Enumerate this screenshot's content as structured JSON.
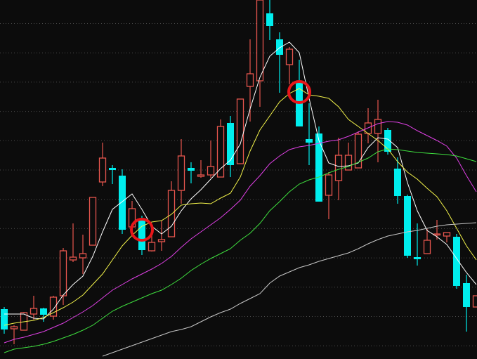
{
  "chart_data": {
    "type": "candlestick",
    "title": "",
    "xlabel": "",
    "ylabel": "",
    "ylim": [
      0,
      52
    ],
    "grid": true,
    "legend": "none",
    "colors": {
      "background": "#0c0c0c",
      "grid": "#4a4a4a",
      "up": "#e8564e",
      "down": "#00eeee",
      "annotation": "#e8161a"
    },
    "candles": [
      {
        "o": 8.0,
        "c": 5.1,
        "h": 8.3,
        "l": 4.5
      },
      {
        "o": 5.2,
        "c": 5.5,
        "h": 5.7,
        "l": 3.0
      },
      {
        "o": 5.0,
        "c": 7.5,
        "h": 7.6,
        "l": 5.0
      },
      {
        "o": 7.3,
        "c": 8.1,
        "h": 9.9,
        "l": 6.5
      },
      {
        "o": 8.1,
        "c": 7.2,
        "h": 8.2,
        "l": 6.2
      },
      {
        "o": 7.0,
        "c": 9.7,
        "h": 9.9,
        "l": 6.5
      },
      {
        "o": 9.9,
        "c": 16.3,
        "h": 16.7,
        "l": 8.6
      },
      {
        "o": 15.0,
        "c": 15.4,
        "h": 20.2,
        "l": 14.7
      },
      {
        "o": 15.3,
        "c": 15.9,
        "h": 18.6,
        "l": 13.0
      },
      {
        "o": 17.1,
        "c": 23.9,
        "h": 23.9,
        "l": 17.1
      },
      {
        "o": 26.1,
        "c": 29.5,
        "h": 31.7,
        "l": 25.5
      },
      {
        "o": 28.1,
        "c": 28.0,
        "h": 28.5,
        "l": 25.8
      },
      {
        "o": 27.0,
        "c": 19.3,
        "h": 27.9,
        "l": 18.7
      },
      {
        "o": 19.7,
        "c": 22.3,
        "h": 23.4,
        "l": 19.7
      },
      {
        "o": 20.6,
        "c": 16.4,
        "h": 21.3,
        "l": 15.7
      },
      {
        "o": 16.3,
        "c": 17.5,
        "h": 19.5,
        "l": 16.2
      },
      {
        "o": 17.6,
        "c": 17.9,
        "h": 20.6,
        "l": 16.3
      },
      {
        "o": 18.3,
        "c": 24.9,
        "h": 26.2,
        "l": 18.3
      },
      {
        "o": 24.9,
        "c": 29.8,
        "h": 32.2,
        "l": 23.0
      },
      {
        "o": 28.1,
        "c": 27.7,
        "h": 28.9,
        "l": 25.9
      },
      {
        "o": 26.9,
        "c": 27.1,
        "h": 29.2,
        "l": 26.7
      },
      {
        "o": 27.1,
        "c": 28.3,
        "h": 32.0,
        "l": 26.7
      },
      {
        "o": 26.8,
        "c": 34.0,
        "h": 35.0,
        "l": 26.8
      },
      {
        "o": 34.5,
        "c": 28.5,
        "h": 35.5,
        "l": 26.8
      },
      {
        "o": 28.7,
        "c": 37.9,
        "h": 37.9,
        "l": 28.7
      },
      {
        "o": 39.7,
        "c": 41.5,
        "h": 46.4,
        "l": 34.7
      },
      {
        "o": 40.5,
        "c": 52.0,
        "h": 52.0,
        "l": 36.8
      },
      {
        "o": 50.1,
        "c": 48.3,
        "h": 52.0,
        "l": 46.3
      },
      {
        "o": 46.4,
        "c": 44.2,
        "h": 47.4,
        "l": 38.8
      },
      {
        "o": 42.8,
        "c": 45.0,
        "h": 45.3,
        "l": 40.0
      },
      {
        "o": 40.3,
        "c": 34.0,
        "h": 43.5,
        "l": 34.0
      },
      {
        "o": 32.2,
        "c": 31.7,
        "h": 37.3,
        "l": 28.5
      },
      {
        "o": 33.0,
        "c": 23.3,
        "h": 34.0,
        "l": 23.3
      },
      {
        "o": 24.2,
        "c": 27.1,
        "h": 27.5,
        "l": 20.8
      },
      {
        "o": 26.3,
        "c": 29.9,
        "h": 32.4,
        "l": 23.5
      },
      {
        "o": 27.8,
        "c": 29.9,
        "h": 31.7,
        "l": 27.8
      },
      {
        "o": 28.1,
        "c": 32.9,
        "h": 33.3,
        "l": 28.1
      },
      {
        "o": 33.0,
        "c": 34.5,
        "h": 36.6,
        "l": 31.6
      },
      {
        "o": 33.0,
        "c": 35.0,
        "h": 37.8,
        "l": 28.9
      },
      {
        "o": 33.5,
        "c": 30.4,
        "h": 33.8,
        "l": 30.0
      },
      {
        "o": 28.0,
        "c": 24.1,
        "h": 29.6,
        "l": 23.0
      },
      {
        "o": 24.1,
        "c": 15.6,
        "h": 24.3,
        "l": 15.3
      },
      {
        "o": 15.4,
        "c": 15.1,
        "h": 20.2,
        "l": 14.2
      },
      {
        "o": 15.9,
        "c": 17.8,
        "h": 19.4,
        "l": 15.9
      },
      {
        "o": 18.6,
        "c": 18.7,
        "h": 20.7,
        "l": 17.9
      },
      {
        "o": 18.4,
        "c": 18.9,
        "h": 18.9,
        "l": 17.5
      },
      {
        "o": 18.3,
        "c": 11.3,
        "h": 18.7,
        "l": 10.9
      },
      {
        "o": 11.7,
        "c": 8.3,
        "h": 12.9,
        "l": 4.8
      },
      {
        "o": 8.3,
        "c": 9.9,
        "h": 9.9,
        "l": 8.3
      }
    ],
    "series": [
      {
        "color": "#ffffff",
        "values": [
          7.3,
          7.3,
          7.3,
          6.7,
          6.6,
          8.0,
          10.0,
          11.5,
          12.7,
          15.5,
          19.0,
          22.2,
          23.3,
          24.4,
          22.2,
          19.8,
          18.7,
          19.8,
          22.0,
          23.7,
          25.0,
          26.5,
          28.0,
          29.2,
          31.5,
          36.5,
          41.0,
          44.0,
          45.2,
          46.0,
          44.5,
          38.0,
          32.0,
          28.8,
          28.3,
          28.4,
          28.8,
          31.0,
          32.4,
          32.2,
          31.0,
          26.0,
          22.0,
          19.2,
          18.3,
          17.2,
          15.2,
          13.2,
          11.5
        ]
      },
      {
        "color": "#f2f24a",
        "values": [
          5.7,
          6.0,
          6.2,
          6.4,
          6.8,
          7.5,
          8.2,
          9.0,
          10.0,
          11.5,
          13.0,
          15.0,
          17.0,
          18.5,
          19.8,
          20.4,
          20.6,
          21.5,
          22.8,
          23.0,
          23.1,
          23.0,
          23.8,
          24.5,
          26.8,
          30.5,
          33.5,
          35.5,
          37.5,
          38.7,
          39.4,
          38.5,
          38.3,
          38.0,
          36.8,
          35.0,
          34.0,
          33.0,
          32.0,
          30.8,
          29.0,
          27.5,
          26.5,
          25.2,
          24.0,
          22.0,
          19.5,
          17.0,
          15.0
        ]
      },
      {
        "color": "#e040e6",
        "values": [
          3.2,
          3.7,
          4.0,
          4.4,
          4.8,
          5.4,
          6.0,
          6.8,
          7.6,
          8.5,
          9.6,
          10.7,
          11.5,
          12.3,
          13.0,
          13.7,
          14.5,
          15.5,
          16.8,
          18.0,
          19.0,
          20.0,
          21.0,
          22.2,
          23.5,
          25.5,
          27.0,
          28.7,
          29.8,
          30.7,
          31.1,
          31.3,
          31.6,
          31.9,
          32.1,
          32.6,
          33.2,
          33.8,
          34.4,
          34.7,
          34.6,
          34.2,
          33.4,
          32.7,
          32.0,
          31.2,
          29.5,
          27.0,
          24.7
        ]
      },
      {
        "color": "#3fe03f",
        "values": [
          1.8,
          2.3,
          2.5,
          2.7,
          3.0,
          3.4,
          3.9,
          4.4,
          5.0,
          5.7,
          6.7,
          7.7,
          8.4,
          9.0,
          9.6,
          10.2,
          10.7,
          11.5,
          12.4,
          13.5,
          14.4,
          15.2,
          15.9,
          16.6,
          17.8,
          18.8,
          20.2,
          22.0,
          23.3,
          24.7,
          25.8,
          26.4,
          26.8,
          27.4,
          27.9,
          28.3,
          28.9,
          29.5,
          30.4,
          30.8,
          30.7,
          30.5,
          30.3,
          30.2,
          30.1,
          30.0,
          29.8,
          29.4,
          29.0
        ]
      },
      {
        "color": "#c8c8c8",
        "values": [
          null,
          null,
          null,
          null,
          null,
          null,
          null,
          null,
          null,
          null,
          1.3,
          1.8,
          2.3,
          2.8,
          3.3,
          3.8,
          4.3,
          4.8,
          5.1,
          5.5,
          6.2,
          6.9,
          7.5,
          8.0,
          8.8,
          9.5,
          10.2,
          11.7,
          12.7,
          13.3,
          13.9,
          14.3,
          14.8,
          15.2,
          15.6,
          16.0,
          16.6,
          17.3,
          17.9,
          18.4,
          18.7,
          19.0,
          19.2,
          19.5,
          19.8,
          20.0,
          20.1,
          20.2,
          20.3
        ]
      }
    ],
    "annotations": [
      {
        "type": "circle",
        "candle": 14,
        "price": 19.3
      },
      {
        "type": "circle",
        "candle": 30,
        "price": 38.9
      }
    ]
  }
}
